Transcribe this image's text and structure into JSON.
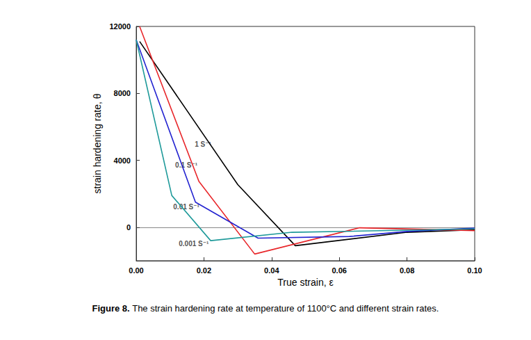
{
  "chart_data": {
    "type": "line",
    "y_label": "strain hardening rate, θ",
    "x_label": "True strain, ε",
    "caption_label": "Figure 8.",
    "caption": "The strain hardening rate at temperature of 1100°C and different strain rates.",
    "xlim": [
      0,
      0.1
    ],
    "xticks": [
      {
        "value": 0,
        "label": "0.00"
      },
      {
        "value": 0.02,
        "label": "0.02"
      },
      {
        "value": 0.04,
        "label": "0.04"
      },
      {
        "value": 0.06,
        "label": "0.06"
      },
      {
        "value": 0.08,
        "label": "0.08"
      },
      {
        "value": 0.1,
        "label": "0.10"
      }
    ],
    "ylim": [
      -2000,
      12000
    ],
    "yticks": [
      0,
      4000,
      8000,
      12000
    ],
    "grid": false,
    "series": [
      {
        "name": "1 S⁻¹",
        "color": "#000000",
        "x": [
          0.001,
          0.03,
          0.047,
          0.08,
          0.1
        ],
        "values": [
          11100,
          2550,
          -1100,
          -300,
          -150
        ]
      },
      {
        "name": "0.1 S⁻¹",
        "color": "#e8262a",
        "x": [
          0.001,
          0.0185,
          0.035,
          0.066,
          0.1
        ],
        "values": [
          12000,
          2750,
          -1600,
          -30,
          -200
        ]
      },
      {
        "name": "0.01 S⁻¹",
        "color": "#2323d0",
        "x": [
          0,
          0.0175,
          0.036,
          0.063,
          0.08,
          0.1
        ],
        "values": [
          11200,
          1500,
          -650,
          -550,
          -250,
          -50
        ]
      },
      {
        "name": "0.001 S⁻¹",
        "color": "#1f9a9a",
        "x": [
          0,
          0.0105,
          0.022,
          0.046,
          0.1
        ],
        "values": [
          11200,
          1900,
          -800,
          -300,
          -100
        ]
      }
    ],
    "annotations": [
      {
        "text": "1 S⁻¹",
        "x": 0.0197,
        "y": 4950
      },
      {
        "text": "0.1 S⁻¹",
        "x": 0.0148,
        "y": 3700
      },
      {
        "text": "0.01 S⁻¹",
        "x": 0.0148,
        "y": 1200
      },
      {
        "text": "0.001 S⁻¹",
        "x": 0.017,
        "y": -1000
      }
    ]
  }
}
